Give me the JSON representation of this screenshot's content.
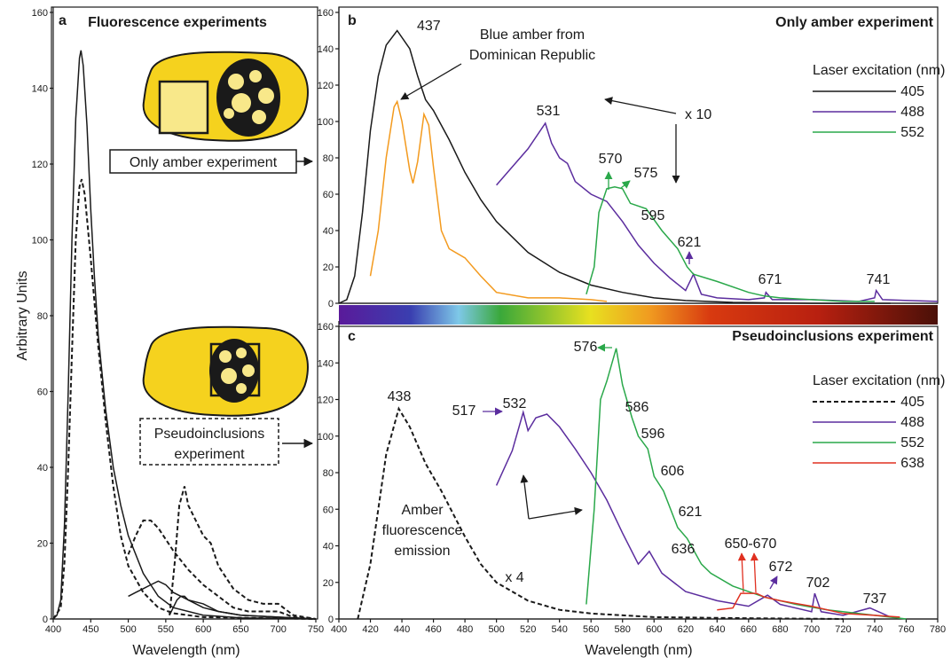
{
  "chart_data": [
    {
      "type": "line",
      "panel": "a",
      "title": "Fluorescence experiments",
      "ylabel": "Arbitrary Units",
      "xlabel": "Wavelength (nm)",
      "xlim": [
        400,
        750
      ],
      "ylim": [
        0,
        160
      ],
      "xticks": [
        400,
        450,
        500,
        550,
        600,
        650,
        700,
        750
      ],
      "yticks": [
        0,
        20,
        40,
        60,
        80,
        100,
        120,
        140,
        160
      ],
      "annotations": [
        "Only amber experiment",
        [
          "Pseudoinclusions",
          "experiment"
        ]
      ],
      "series": [
        {
          "color": "#1a1a1a",
          "dashed": false,
          "x": [
            400,
            405,
            410,
            415,
            420,
            425,
            430,
            435,
            437,
            440,
            445,
            450,
            455,
            460,
            470,
            480,
            490,
            500,
            520,
            540,
            560,
            600,
            650,
            750
          ],
          "values": [
            0,
            1,
            5,
            25,
            60,
            100,
            132,
            148,
            150,
            146,
            130,
            108,
            90,
            75,
            55,
            40,
            30,
            22,
            12,
            6,
            3,
            1,
            0.3,
            0
          ]
        },
        {
          "color": "#1a1a1a",
          "dashed": true,
          "x": [
            400,
            410,
            415,
            420,
            425,
            430,
            435,
            438,
            442,
            450,
            460,
            470,
            480,
            490,
            500,
            520,
            540,
            560,
            600,
            750
          ],
          "values": [
            0,
            3,
            15,
            40,
            70,
            100,
            114,
            116,
            112,
            95,
            72,
            52,
            35,
            22,
            14,
            7,
            3,
            1.5,
            0.5,
            0
          ]
        },
        {
          "color": "#1a1a1a",
          "dashed": false,
          "x": [
            500,
            510,
            520,
            530,
            540,
            550,
            560,
            580,
            600,
            620,
            650,
            700,
            750
          ],
          "values": [
            6,
            7,
            8,
            9,
            10,
            9,
            7,
            5,
            4,
            2,
            1,
            0.5,
            0
          ]
        },
        {
          "color": "#1a1a1a",
          "dashed": false,
          "x": [
            555,
            565,
            570,
            575,
            580,
            600,
            620,
            650,
            700,
            750
          ],
          "values": [
            1,
            5,
            6,
            6,
            5,
            3,
            2,
            1,
            0.5,
            0
          ]
        },
        {
          "color": "#1a1a1a",
          "dashed": true,
          "x": [
            500,
            510,
            520,
            530,
            540,
            560,
            580,
            600,
            620,
            640,
            660,
            700,
            720,
            750
          ],
          "values": [
            17,
            22,
            26,
            26,
            24,
            18,
            13,
            9,
            6,
            3,
            2,
            2,
            0.5,
            0
          ]
        },
        {
          "color": "#1a1a1a",
          "dashed": true,
          "x": [
            555,
            562,
            568,
            575,
            580,
            590,
            600,
            610,
            620,
            640,
            660,
            680,
            700,
            720,
            750
          ],
          "values": [
            1,
            15,
            30,
            35,
            30,
            26,
            22,
            20,
            14,
            8,
            5,
            4,
            4,
            1,
            0
          ]
        }
      ]
    },
    {
      "type": "line",
      "panel": "b",
      "title": "Only amber experiment",
      "legend_title": "Laser excitation (nm)",
      "xlim": [
        400,
        780
      ],
      "ylim": [
        0,
        160
      ],
      "yticks": [
        0,
        20,
        40,
        60,
        80,
        100,
        120,
        140,
        160
      ],
      "annotations": [
        "437",
        [
          "Blue amber from",
          "Dominican Republic"
        ],
        "531",
        "x 10",
        "570",
        "575",
        "595",
        "621",
        "671",
        "741"
      ],
      "series": [
        {
          "name": "405",
          "color": "#1a1a1a",
          "dashed": false,
          "x": [
            400,
            405,
            410,
            415,
            420,
            425,
            430,
            437,
            445,
            450,
            455,
            460,
            470,
            480,
            490,
            500,
            520,
            540,
            560,
            580,
            600,
            620,
            650,
            700,
            750
          ],
          "values": [
            0,
            2,
            15,
            50,
            95,
            125,
            142,
            150,
            140,
            125,
            112,
            106,
            90,
            72,
            57,
            45,
            28,
            17,
            10,
            6,
            3,
            1.5,
            0.5,
            0,
            0
          ]
        },
        {
          "name": "488",
          "color": "#5b2d9e",
          "dashed": false,
          "x": [
            500,
            510,
            520,
            531,
            535,
            540,
            545,
            550,
            560,
            570,
            580,
            590,
            600,
            610,
            620,
            625,
            630,
            640,
            660,
            670,
            671,
            675,
            700,
            730,
            740,
            741,
            745,
            780
          ],
          "values": [
            65,
            75,
            85,
            99,
            88,
            80,
            77,
            67,
            60,
            56,
            45,
            32,
            22,
            14,
            7,
            16,
            5,
            3,
            2,
            3,
            6,
            2,
            2,
            1,
            3,
            7,
            2,
            1
          ]
        },
        {
          "name": "552",
          "color": "#2aa84a",
          "dashed": false,
          "x": [
            557,
            562,
            565,
            570,
            575,
            580,
            585,
            595,
            605,
            615,
            621,
            625,
            640,
            660,
            670,
            680,
            700,
            720,
            740
          ],
          "values": [
            5,
            20,
            50,
            63,
            64,
            63,
            55,
            52,
            40,
            30,
            20,
            16,
            12,
            6,
            4,
            3,
            2,
            1,
            1
          ]
        },
        {
          "color": "#f39a1e",
          "dashed": false,
          "x": [
            420,
            425,
            430,
            435,
            437,
            440,
            445,
            447,
            450,
            454,
            457,
            460,
            465,
            470,
            480,
            490,
            500,
            520,
            540,
            560,
            570
          ],
          "values": [
            15,
            40,
            80,
            108,
            111,
            100,
            73,
            66,
            78,
            104,
            98,
            75,
            40,
            30,
            25,
            15,
            6,
            3,
            3,
            2,
            1
          ]
        }
      ]
    },
    {
      "type": "line",
      "panel": "c",
      "title": "Pseudoinclusions experiment",
      "legend_title": "Laser excitation (nm)",
      "xlabel": "Wavelength (nm)",
      "xlim": [
        400,
        780
      ],
      "ylim": [
        0,
        160
      ],
      "xticks": [
        400,
        420,
        440,
        460,
        480,
        500,
        520,
        540,
        560,
        580,
        600,
        620,
        640,
        660,
        680,
        700,
        720,
        740,
        760,
        780
      ],
      "yticks": [
        0,
        20,
        40,
        60,
        80,
        100,
        120,
        140,
        160
      ],
      "annotations": [
        "438",
        "517",
        "532",
        "576",
        "586",
        "596",
        "606",
        "621",
        "636",
        "650-670",
        "672",
        "702",
        "737",
        "x 4",
        [
          "Amber",
          "fluorescence",
          "emission"
        ]
      ],
      "series": [
        {
          "name": "405",
          "color": "#1a1a1a",
          "dashed": true,
          "x": [
            412,
            420,
            430,
            438,
            445,
            455,
            465,
            480,
            490,
            500,
            520,
            540,
            560,
            600,
            650,
            720
          ],
          "values": [
            0,
            30,
            90,
            115,
            105,
            85,
            70,
            45,
            30,
            20,
            10,
            5,
            3,
            1,
            0.5,
            0
          ]
        },
        {
          "name": "488",
          "color": "#5b2d9e",
          "dashed": false,
          "x": [
            500,
            510,
            517,
            520,
            525,
            532,
            540,
            550,
            560,
            570,
            580,
            590,
            597,
            605,
            620,
            640,
            660,
            672,
            680,
            700,
            702,
            706,
            720,
            737,
            745,
            750
          ],
          "values": [
            73,
            92,
            113,
            103,
            110,
            112,
            105,
            93,
            80,
            65,
            47,
            30,
            37,
            25,
            15,
            10,
            7,
            13,
            8,
            4,
            14,
            4,
            2,
            6,
            3,
            1
          ]
        },
        {
          "name": "552",
          "color": "#2aa84a",
          "dashed": false,
          "x": [
            557,
            562,
            566,
            570,
            576,
            580,
            586,
            590,
            596,
            600,
            606,
            615,
            621,
            630,
            636,
            650,
            670,
            690,
            710,
            740,
            760
          ],
          "values": [
            8,
            60,
            120,
            130,
            148,
            128,
            110,
            100,
            93,
            78,
            70,
            50,
            44,
            30,
            25,
            18,
            12,
            8,
            5,
            2,
            0
          ]
        },
        {
          "name": "638",
          "color": "#e03020",
          "dashed": false,
          "x": [
            640,
            650,
            655,
            665,
            670,
            680,
            700,
            720,
            740,
            756
          ],
          "values": [
            5,
            6,
            14,
            14,
            12,
            10,
            7,
            3,
            2,
            1
          ]
        }
      ]
    }
  ]
}
